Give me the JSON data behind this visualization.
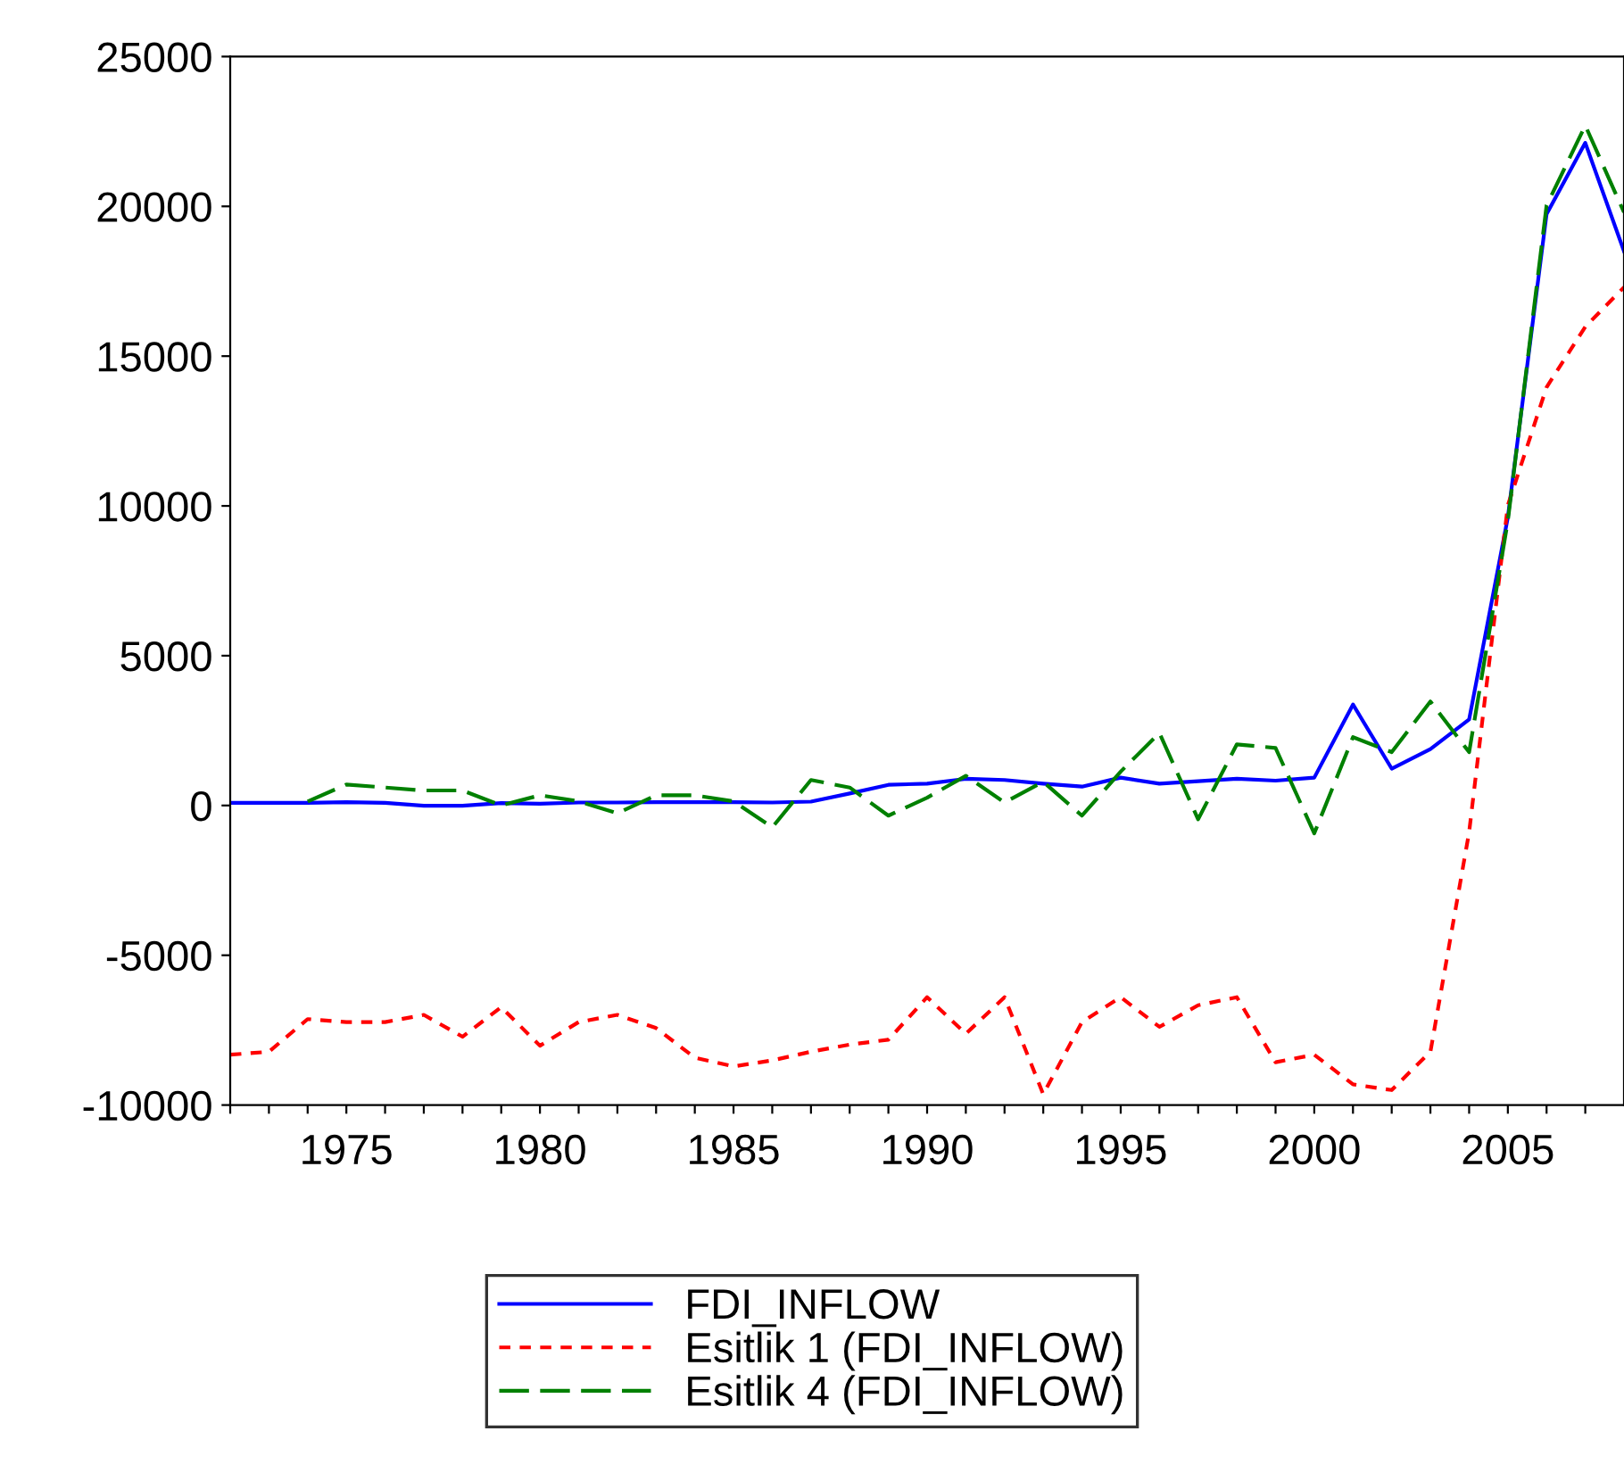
{
  "chart_data": {
    "type": "line",
    "x": [
      1972,
      1973,
      1974,
      1975,
      1976,
      1977,
      1978,
      1979,
      1980,
      1981,
      1982,
      1983,
      1984,
      1985,
      1986,
      1987,
      1988,
      1989,
      1990,
      1991,
      1992,
      1993,
      1994,
      1995,
      1996,
      1997,
      1998,
      1999,
      2000,
      2001,
      2002,
      2003,
      2004,
      2005,
      2006,
      2007,
      2008
    ],
    "series": [
      {
        "name": "FDI_INFLOW",
        "color": "#0000ff",
        "line_style": "solid",
        "values": [
          90,
          90,
          90,
          110,
          90,
          -10,
          -10,
          80,
          60,
          100,
          100,
          110,
          110,
          110,
          100,
          130,
          400,
          690,
          730,
          890,
          850,
          730,
          630,
          930,
          730,
          810,
          890,
          830,
          930,
          3370,
          1230,
          1880,
          2870,
          9620,
          19740,
          22120,
          18500
        ]
      },
      {
        "name": "Esitlik 1 (FDI_INFLOW)",
        "color": "#ff0000",
        "line_style": "dotted",
        "values": [
          -8320,
          -8220,
          -7130,
          -7230,
          -7230,
          -6990,
          -7720,
          -6730,
          -8020,
          -7230,
          -6990,
          -7430,
          -8420,
          -8710,
          -8510,
          -8220,
          -7980,
          -7820,
          -6400,
          -7620,
          -6400,
          -9640,
          -7230,
          -6400,
          -7390,
          -6670,
          -6400,
          -8570,
          -8320,
          -9310,
          -9500,
          -8220,
          -890,
          10020,
          13960,
          15980,
          17300
        ]
      },
      {
        "name": "Esitlik 4 (FDI_INFLOW)",
        "color": "#008000",
        "line_style": "dashed",
        "values": [
          null,
          null,
          130,
          700,
          600,
          500,
          500,
          0,
          340,
          140,
          -260,
          340,
          340,
          140,
          -730,
          850,
          600,
          -340,
          260,
          990,
          100,
          790,
          -340,
          1130,
          2420,
          -460,
          2040,
          1920,
          -930,
          2280,
          1780,
          3470,
          1780,
          9500,
          20030,
          22700,
          19800
        ]
      }
    ],
    "xlim": [
      1972,
      2008
    ],
    "xticks": [
      {
        "value": 1972,
        "label": null
      },
      {
        "value": 1973,
        "label": null
      },
      {
        "value": 1974,
        "label": null
      },
      1975,
      {
        "value": 1976,
        "label": null
      },
      {
        "value": 1977,
        "label": null
      },
      {
        "value": 1978,
        "label": null
      },
      {
        "value": 1979,
        "label": null
      },
      1980,
      {
        "value": 1981,
        "label": null
      },
      {
        "value": 1982,
        "label": null
      },
      {
        "value": 1983,
        "label": null
      },
      {
        "value": 1984,
        "label": null
      },
      1985,
      {
        "value": 1986,
        "label": null
      },
      {
        "value": 1987,
        "label": null
      },
      {
        "value": 1988,
        "label": null
      },
      {
        "value": 1989,
        "label": null
      },
      1990,
      {
        "value": 1991,
        "label": null
      },
      {
        "value": 1992,
        "label": null
      },
      {
        "value": 1993,
        "label": null
      },
      {
        "value": 1994,
        "label": null
      },
      1995,
      {
        "value": 1996,
        "label": null
      },
      {
        "value": 1997,
        "label": null
      },
      {
        "value": 1998,
        "label": null
      },
      {
        "value": 1999,
        "label": null
      },
      2000,
      {
        "value": 2001,
        "label": null
      },
      {
        "value": 2002,
        "label": null
      },
      {
        "value": 2003,
        "label": null
      },
      {
        "value": 2004,
        "label": null
      },
      2005,
      {
        "value": 2006,
        "label": null
      },
      {
        "value": 2007,
        "label": null
      }
    ],
    "ylim": [
      -10000,
      25000
    ],
    "yticks": [
      -10000,
      -5000,
      0,
      5000,
      10000,
      15000,
      20000,
      25000
    ],
    "grid": false,
    "legend": "bottom"
  }
}
